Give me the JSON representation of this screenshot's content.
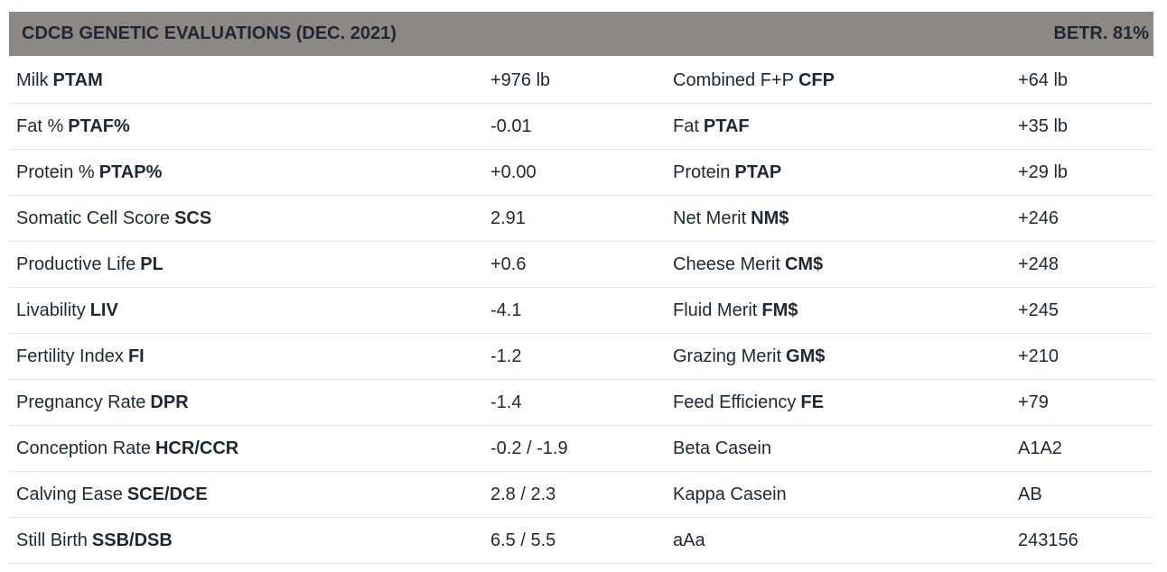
{
  "header": {
    "title": "CDCB GENETIC EVALUATIONS (DEC. 2021)",
    "reliability": "BETR. 81%"
  },
  "colors": {
    "header_bg": "#8e8885",
    "text": "#1e2833",
    "divider": "#e3e5e7",
    "background": "#ffffff"
  },
  "table": {
    "rows": [
      {
        "left": {
          "label": "Milk",
          "abbr": "PTAM",
          "value": "+976 lb"
        },
        "right": {
          "label": "Combined F+P",
          "abbr": "CFP",
          "value": "+64 lb"
        }
      },
      {
        "left": {
          "label": "Fat %",
          "abbr": "PTAF%",
          "value": "-0.01"
        },
        "right": {
          "label": "Fat",
          "abbr": "PTAF",
          "value": "+35 lb"
        }
      },
      {
        "left": {
          "label": "Protein %",
          "abbr": "PTAP%",
          "value": "+0.00"
        },
        "right": {
          "label": "Protein",
          "abbr": "PTAP",
          "value": "+29 lb"
        }
      },
      {
        "left": {
          "label": "Somatic Cell Score",
          "abbr": "SCS",
          "value": "2.91"
        },
        "right": {
          "label": "Net Merit",
          "abbr": "NM$",
          "value": "+246"
        }
      },
      {
        "left": {
          "label": "Productive Life",
          "abbr": "PL",
          "value": "+0.6"
        },
        "right": {
          "label": "Cheese Merit",
          "abbr": "CM$",
          "value": "+248"
        }
      },
      {
        "left": {
          "label": "Livability",
          "abbr": "LIV",
          "value": "-4.1"
        },
        "right": {
          "label": "Fluid Merit",
          "abbr": "FM$",
          "value": "+245"
        }
      },
      {
        "left": {
          "label": "Fertility Index",
          "abbr": "FI",
          "value": "-1.2"
        },
        "right": {
          "label": "Grazing Merit",
          "abbr": "GM$",
          "value": "+210"
        }
      },
      {
        "left": {
          "label": "Pregnancy Rate",
          "abbr": "DPR",
          "value": "-1.4"
        },
        "right": {
          "label": "Feed Efficiency",
          "abbr": "FE",
          "value": "+79"
        }
      },
      {
        "left": {
          "label": "Conception Rate",
          "abbr": "HCR/CCR",
          "value": "-0.2 / -1.9"
        },
        "right": {
          "label": "Beta Casein",
          "abbr": "",
          "value": "A1A2"
        }
      },
      {
        "left": {
          "label": "Calving Ease",
          "abbr": "SCE/DCE",
          "value": "2.8 / 2.3"
        },
        "right": {
          "label": "Kappa Casein",
          "abbr": "",
          "value": "AB"
        }
      },
      {
        "left": {
          "label": "Still Birth",
          "abbr": "SSB/DSB",
          "value": "6.5 / 5.5"
        },
        "right": {
          "label": "aAa",
          "abbr": "",
          "value": "243156"
        }
      }
    ]
  }
}
